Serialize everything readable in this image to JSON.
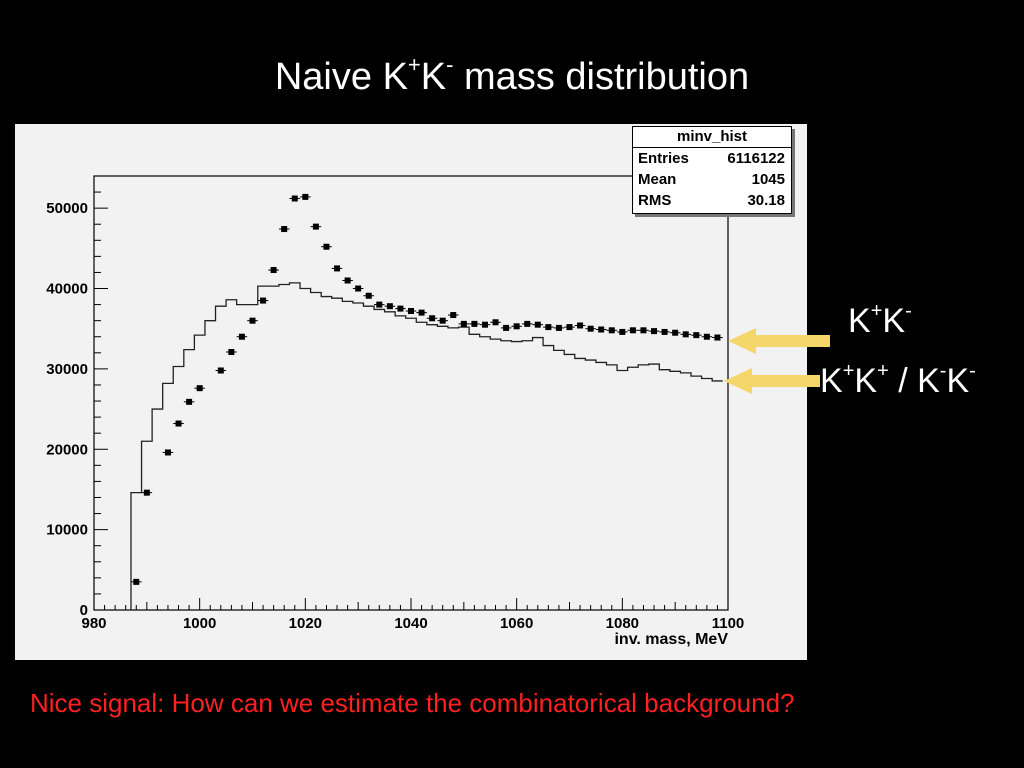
{
  "slide": {
    "title_prefix": "Naive K",
    "title_sup1": "+",
    "title_mid": "K",
    "title_sup2": "-",
    "title_suffix": " mass distribution",
    "footer": "Nice signal: How can we estimate the combinatorical background?"
  },
  "labels": {
    "kpkm": {
      "k1": "K",
      "s1": "+",
      "k2": "K",
      "s2": "-"
    },
    "like_sign": {
      "k1": "K",
      "s1": "+",
      "k2": "K",
      "s2": "+",
      "sep": " / ",
      "k3": "K",
      "s3": "-",
      "k4": "K",
      "s4": "-"
    }
  },
  "stats": {
    "title": "minv_hist",
    "rows": [
      {
        "key": "Entries",
        "value": "6116122"
      },
      {
        "key": "Mean",
        "value": "1045"
      },
      {
        "key": "RMS",
        "value": "30.18"
      }
    ]
  },
  "colors": {
    "background": "#000000",
    "plot_panel": "#f2f2f2",
    "footer_text": "#ff2020",
    "arrow": "#f5d66a",
    "markers": "#000000"
  },
  "chart_data": {
    "type": "scatter",
    "xlabel": "inv. mass, MeV",
    "ylabel": "",
    "xlim": [
      980,
      1100
    ],
    "ylim": [
      0,
      54000
    ],
    "xticks": [
      980,
      1000,
      1020,
      1040,
      1060,
      1080,
      1100
    ],
    "yticks": [
      0,
      10000,
      20000,
      30000,
      40000,
      50000
    ],
    "series": [
      {
        "name": "K+K-",
        "style": "markers",
        "bin_width": 2,
        "x": [
          988,
          990,
          994,
          996,
          998,
          1000,
          1004,
          1006,
          1008,
          1010,
          1012,
          1014,
          1016,
          1018,
          1020,
          1022,
          1024,
          1026,
          1028,
          1030,
          1032,
          1034,
          1036,
          1038,
          1040,
          1042,
          1044,
          1046,
          1048,
          1050,
          1052,
          1054,
          1056,
          1058,
          1060,
          1062,
          1064,
          1066,
          1068,
          1070,
          1072,
          1074,
          1076,
          1078,
          1080,
          1082,
          1084,
          1086,
          1088,
          1090,
          1092,
          1094,
          1096,
          1098
        ],
        "y": [
          3500,
          14600,
          19600,
          23200,
          25900,
          27600,
          29800,
          32100,
          34000,
          36000,
          38500,
          42300,
          47400,
          51200,
          51400,
          47700,
          45200,
          42500,
          41000,
          40000,
          39100,
          38000,
          37800,
          37500,
          37200,
          37000,
          36300,
          36000,
          36700,
          35600,
          35600,
          35500,
          35800,
          35100,
          35300,
          35600,
          35500,
          35200,
          35100,
          35200,
          35400,
          35000,
          34900,
          34800,
          34600,
          34800,
          34800,
          34700,
          34600,
          34500,
          34300,
          34200,
          34000,
          33900
        ]
      },
      {
        "name": "K+K+ / K-K-",
        "style": "step",
        "bin_width": 2,
        "x": [
          988,
          990,
          992,
          994,
          996,
          998,
          1000,
          1002,
          1004,
          1006,
          1008,
          1010,
          1012,
          1014,
          1016,
          1018,
          1020,
          1022,
          1024,
          1026,
          1028,
          1030,
          1032,
          1034,
          1036,
          1038,
          1040,
          1042,
          1044,
          1046,
          1048,
          1050,
          1052,
          1054,
          1056,
          1058,
          1060,
          1062,
          1064,
          1066,
          1068,
          1070,
          1072,
          1074,
          1076,
          1078,
          1080,
          1082,
          1084,
          1086,
          1088,
          1090,
          1092,
          1094,
          1096,
          1098
        ],
        "y": [
          14600,
          21000,
          25000,
          28200,
          30300,
          32400,
          34200,
          36000,
          37800,
          38600,
          38000,
          38000,
          40300,
          40300,
          40500,
          40700,
          40000,
          39500,
          39000,
          38800,
          38400,
          38200,
          37800,
          37400,
          37100,
          36600,
          36300,
          35800,
          35500,
          35300,
          35100,
          35200,
          34300,
          34000,
          33700,
          33500,
          33400,
          33500,
          33900,
          32900,
          32300,
          31800,
          31300,
          31100,
          30800,
          30500,
          29800,
          30200,
          30500,
          30600,
          29900,
          29700,
          29500,
          29100,
          28800,
          28500
        ]
      }
    ]
  }
}
